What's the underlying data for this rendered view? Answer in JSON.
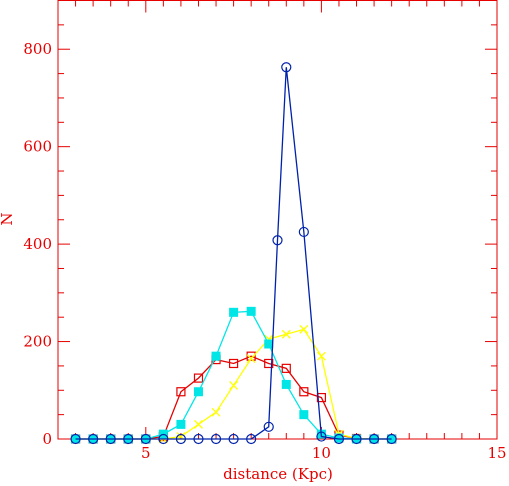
{
  "chart_data": {
    "type": "line",
    "xlabel": "distance (Kpc)",
    "ylabel": "N",
    "xlim": [
      2.5,
      15
    ],
    "ylim": [
      0,
      900
    ],
    "x_ticks": [
      5,
      10,
      15
    ],
    "x_tick_labels": [
      "5",
      "10",
      "15"
    ],
    "y_ticks": [
      0,
      200,
      400,
      600,
      800
    ],
    "y_tick_labels": [
      "0",
      "200",
      "400",
      "600",
      "800"
    ],
    "x_minor_step": 0.5,
    "y_minor_step": 50,
    "grid": false,
    "frame_color": "#e60000",
    "series": [
      {
        "marker": "square-open",
        "color": "#e60000",
        "x": [
          3,
          3.5,
          4,
          4.5,
          5,
          5.5,
          6,
          6.5,
          7,
          7.5,
          8,
          8.5,
          9,
          9.5,
          10,
          10.5,
          11,
          11.5,
          12
        ],
        "y": [
          0,
          0,
          0,
          0,
          0,
          5,
          97,
          125,
          163,
          155,
          170,
          155,
          145,
          97,
          85,
          8,
          1,
          0,
          0
        ]
      },
      {
        "marker": "cross",
        "color": "#ffff00",
        "x": [
          3,
          3.5,
          4,
          4.5,
          5,
          5.5,
          6,
          6.5,
          7,
          7.5,
          8,
          8.5,
          9,
          9.5,
          10,
          10.5,
          11,
          11.5,
          12
        ],
        "y": [
          0,
          0,
          0,
          0,
          0,
          0,
          5,
          30,
          55,
          110,
          165,
          205,
          215,
          225,
          170,
          10,
          1,
          0,
          0
        ]
      },
      {
        "marker": "square-filled",
        "color": "#00e6e6",
        "x": [
          3,
          3.5,
          4,
          4.5,
          5,
          5.5,
          6,
          6.5,
          7,
          7.5,
          8,
          8.5,
          9,
          9.5,
          10,
          10.5,
          11,
          11.5,
          12
        ],
        "y": [
          0,
          0,
          0,
          0,
          0,
          10,
          30,
          97,
          170,
          260,
          262,
          195,
          112,
          50,
          10,
          2,
          0,
          0,
          0
        ]
      },
      {
        "marker": "circle-open",
        "color": "#0022aa",
        "x": [
          3,
          3.5,
          4,
          4.5,
          5,
          5.5,
          6,
          6.5,
          7,
          7.5,
          8,
          8.5,
          8.75,
          9,
          9.5,
          10,
          10.5,
          11,
          11.5,
          12
        ],
        "y": [
          0,
          0,
          0,
          0,
          0,
          0,
          0,
          0,
          0,
          0,
          0,
          25,
          408,
          763,
          425,
          5,
          0,
          0,
          0,
          0
        ]
      }
    ]
  }
}
